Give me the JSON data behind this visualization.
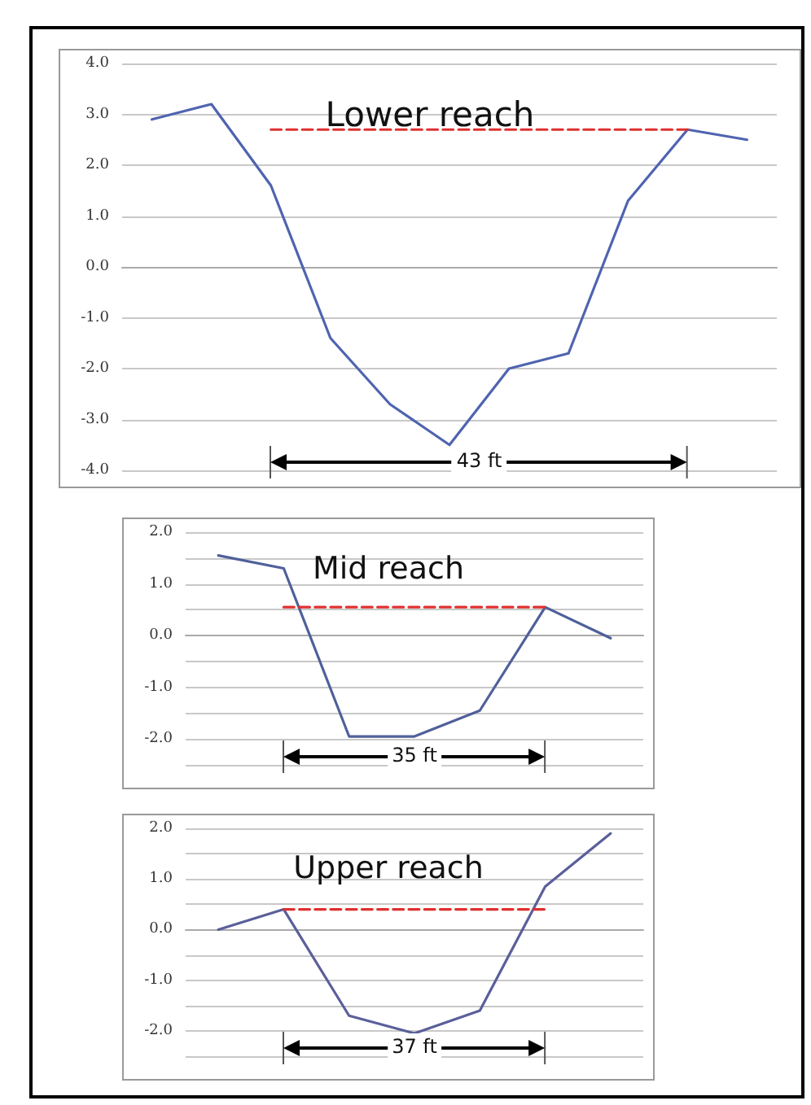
{
  "chart_data": [
    {
      "type": "line",
      "title": "Lower reach",
      "categories": [
        null,
        null,
        null,
        null,
        null,
        null,
        null,
        null,
        null,
        null,
        null
      ],
      "series": [
        {
          "color": "#4f64b0",
          "values": [
            2.9,
            3.2,
            1.6,
            -1.4,
            -2.7,
            -3.5,
            -2.0,
            -1.7,
            1.3,
            2.7,
            2.5
          ]
        },
        {
          "color": "#e03030",
          "line_style": "dashed",
          "values": [
            null,
            null,
            2.7,
            2.7,
            2.7,
            2.7,
            2.7,
            2.7,
            2.7,
            2.7,
            null
          ]
        }
      ],
      "ylim": [
        -4,
        4
      ],
      "yticks": [
        {
          "value": -4,
          "label": "-4.0"
        },
        {
          "value": -3,
          "label": "-3.0"
        },
        {
          "value": -2,
          "label": "-2.0"
        },
        {
          "value": -1,
          "label": "-1.0"
        },
        {
          "value": 0,
          "label": "0.0"
        },
        {
          "value": 1,
          "label": "1.0"
        },
        {
          "value": 2,
          "label": "2.0"
        },
        {
          "value": 3,
          "label": "3.0"
        },
        {
          "value": 4,
          "label": "4.0"
        }
      ],
      "grid": "y",
      "tick_labels": "y",
      "marker": "none",
      "line_style": "solid",
      "annotations": [
        "43 ft"
      ]
    },
    {
      "type": "line",
      "title": "Mid reach",
      "categories": [
        null,
        null,
        null,
        null,
        null,
        null,
        null
      ],
      "series": [
        {
          "color": "#50609a",
          "values": [
            1.55,
            1.3,
            -1.95,
            -1.95,
            -1.45,
            0.55,
            -0.05
          ]
        },
        {
          "color": "#e03030",
          "line_style": "dashed",
          "values": [
            null,
            0.55,
            0.55,
            0.55,
            0.55,
            0.55,
            null
          ]
        }
      ],
      "ylim": [
        -2.5,
        2
      ],
      "yticks": [
        {
          "value": -2.5,
          "label": null
        },
        {
          "value": -2,
          "label": "-2.0"
        },
        {
          "value": -1.5,
          "label": null
        },
        {
          "value": -1,
          "label": "-1.0"
        },
        {
          "value": -0.5,
          "label": null
        },
        {
          "value": 0,
          "label": "0.0"
        },
        {
          "value": 0.5,
          "label": null
        },
        {
          "value": 1,
          "label": "1.0"
        },
        {
          "value": 1.5,
          "label": null
        },
        {
          "value": 2,
          "label": "2.0"
        }
      ],
      "grid": "y",
      "tick_labels": "y",
      "marker": "none",
      "line_style": "solid",
      "annotations": [
        "35 ft"
      ]
    },
    {
      "type": "line",
      "title": "Upper reach",
      "categories": [
        null,
        null,
        null,
        null,
        null,
        null,
        null
      ],
      "series": [
        {
          "color": "#5a5f9a",
          "values": [
            0.0,
            0.4,
            -1.7,
            -2.05,
            -1.6,
            0.85,
            1.9
          ]
        },
        {
          "color": "#e03030",
          "line_style": "dashed",
          "values": [
            null,
            0.4,
            0.4,
            0.4,
            0.4,
            0.4,
            null
          ]
        }
      ],
      "ylim": [
        -2.5,
        2
      ],
      "yticks": [
        {
          "value": -2.5,
          "label": null
        },
        {
          "value": -2,
          "label": "-2.0"
        },
        {
          "value": -1.5,
          "label": null
        },
        {
          "value": -1,
          "label": "-1.0"
        },
        {
          "value": -0.5,
          "label": null
        },
        {
          "value": 0,
          "label": "0.0"
        },
        {
          "value": 0.5,
          "label": null
        },
        {
          "value": 1,
          "label": "1.0"
        },
        {
          "value": 1.5,
          "label": null
        },
        {
          "value": 2,
          "label": "2.0"
        }
      ],
      "grid": "y",
      "tick_labels": "y",
      "marker": "none",
      "line_style": "solid",
      "annotations": [
        "37 ft"
      ]
    }
  ]
}
